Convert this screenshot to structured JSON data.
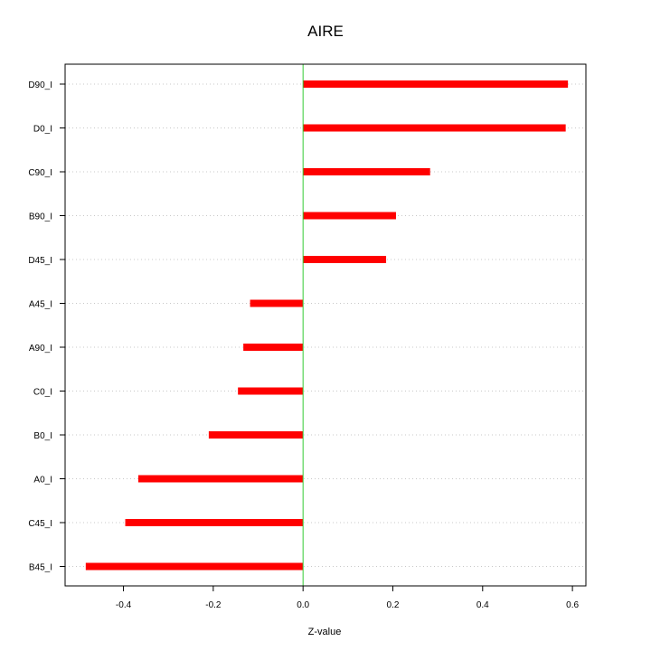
{
  "chart_data": {
    "type": "bar",
    "orientation": "horizontal",
    "title": "AIRE",
    "xlabel": "Z-value",
    "ylabel": "",
    "categories": [
      "D90_I",
      "D0_I",
      "C90_I",
      "B90_I",
      "D45_I",
      "A45_I",
      "A90_I",
      "C0_I",
      "B0_I",
      "A0_I",
      "C45_I",
      "B45_I"
    ],
    "values": [
      0.59,
      0.585,
      0.283,
      0.207,
      0.185,
      -0.118,
      -0.133,
      -0.145,
      -0.21,
      -0.367,
      -0.396,
      -0.484
    ],
    "xlim": [
      -0.53,
      0.63
    ],
    "xticks": [
      -0.4,
      -0.2,
      0.0,
      0.2,
      0.4,
      0.6
    ],
    "xtick_labels": [
      "-0.4",
      "-0.2",
      "0.0",
      "0.2",
      "0.4",
      "0.6"
    ],
    "bar_color": "#ff0000",
    "zero_line_color": "#33cc33",
    "grid_color": "#c8c8c8",
    "grid": "horizontal dotted"
  }
}
